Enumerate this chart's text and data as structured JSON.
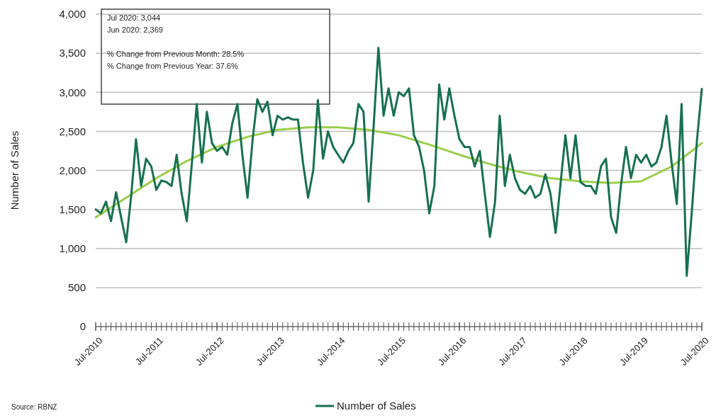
{
  "chart_data": {
    "type": "line",
    "ylabel": "Number of Sales",
    "annotations": [
      "Jul 2020:  3,044",
      "Jun 2020:  2,369",
      "% Change from Previous Month: 28.5%",
      "% Change from Previous Year: 37.6%",
      "Source: RBNZ"
    ],
    "x": [
      "2010-07",
      "2010-08",
      "2010-09",
      "2010-10",
      "2010-11",
      "2010-12",
      "2011-01",
      "2011-02",
      "2011-03",
      "2011-04",
      "2011-05",
      "2011-06",
      "2011-07",
      "2011-08",
      "2011-09",
      "2011-10",
      "2011-11",
      "2011-12",
      "2012-01",
      "2012-02",
      "2012-03",
      "2012-04",
      "2012-05",
      "2012-06",
      "2012-07",
      "2012-08",
      "2012-09",
      "2012-10",
      "2012-11",
      "2012-12",
      "2013-01",
      "2013-02",
      "2013-03",
      "2013-04",
      "2013-05",
      "2013-06",
      "2013-07",
      "2013-08",
      "2013-09",
      "2013-10",
      "2013-11",
      "2013-12",
      "2014-01",
      "2014-02",
      "2014-03",
      "2014-04",
      "2014-05",
      "2014-06",
      "2014-07",
      "2014-08",
      "2014-09",
      "2014-10",
      "2014-11",
      "2014-12",
      "2015-01",
      "2015-02",
      "2015-03",
      "2015-04",
      "2015-05",
      "2015-06",
      "2015-07",
      "2015-08",
      "2015-09",
      "2015-10",
      "2015-11",
      "2015-12",
      "2016-01",
      "2016-02",
      "2016-03",
      "2016-04",
      "2016-05",
      "2016-06",
      "2016-07",
      "2016-08",
      "2016-09",
      "2016-10",
      "2016-11",
      "2016-12",
      "2017-01",
      "2017-02",
      "2017-03",
      "2017-04",
      "2017-05",
      "2017-06",
      "2017-07",
      "2017-08",
      "2017-09",
      "2017-10",
      "2017-11",
      "2017-12",
      "2018-01",
      "2018-02",
      "2018-03",
      "2018-04",
      "2018-05",
      "2018-06",
      "2018-07",
      "2018-08",
      "2018-09",
      "2018-10",
      "2018-11",
      "2018-12",
      "2019-01",
      "2019-02",
      "2019-03",
      "2019-04",
      "2019-05",
      "2019-06",
      "2019-07",
      "2019-08",
      "2019-09",
      "2019-10",
      "2019-11",
      "2019-12",
      "2020-01",
      "2020-02",
      "2020-03",
      "2020-04",
      "2020-05",
      "2020-06",
      "2020-07"
    ],
    "series": [
      {
        "name": "Number of Sales",
        "color": "#17704f",
        "values": [
          1500,
          1450,
          1600,
          1350,
          1720,
          1400,
          1080,
          1700,
          2400,
          1800,
          2150,
          2050,
          1750,
          1870,
          1850,
          1800,
          2200,
          1700,
          1350,
          2100,
          2850,
          2100,
          2750,
          2350,
          2250,
          2300,
          2200,
          2600,
          2850,
          2200,
          1650,
          2400,
          2910,
          2750,
          2880,
          2450,
          2700,
          2650,
          2680,
          2650,
          2650,
          2100,
          1650,
          2000,
          2900,
          2150,
          2500,
          2300,
          2200,
          2100,
          2250,
          2350,
          2850,
          2750,
          1600,
          2600,
          3570,
          2700,
          3050,
          2700,
          3000,
          2950,
          3050,
          2450,
          2300,
          2000,
          1450,
          1800,
          3100,
          2650,
          3050,
          2700,
          2400,
          2300,
          2300,
          2050,
          2250,
          1700,
          1150,
          1600,
          2700,
          1800,
          2200,
          1900,
          1750,
          1700,
          1800,
          1650,
          1700,
          1950,
          1700,
          1200,
          1800,
          2450,
          1900,
          2450,
          1850,
          1800,
          1800,
          1700,
          2050,
          2150,
          1400,
          1200,
          1800,
          2300,
          1900,
          2200,
          2100,
          2200,
          2050,
          2100,
          2300,
          2700,
          2100,
          1570,
          2850,
          650,
          1450,
          2369,
          3044
        ]
      },
      {
        "type": "line",
        "color": "#9acd4a",
        "x": [
          "2010-07",
          "2011-01",
          "2011-07",
          "2012-01",
          "2012-07",
          "2013-01",
          "2013-07",
          "2014-01",
          "2014-07",
          "2015-01",
          "2015-07",
          "2016-01",
          "2016-07",
          "2017-01",
          "2017-07",
          "2018-01",
          "2018-07",
          "2019-01",
          "2019-07",
          "2020-01",
          "2020-07"
        ],
        "values": [
          1400,
          1650,
          1900,
          2120,
          2300,
          2430,
          2520,
          2550,
          2550,
          2520,
          2450,
          2330,
          2200,
          2080,
          1980,
          1900,
          1860,
          1840,
          1860,
          2050,
          2350
        ]
      }
    ],
    "xlim": [
      "2010-07",
      "2020-07"
    ],
    "xticks": [
      {
        "value": "2010-07",
        "label": "Jul-2010"
      },
      {
        "value": "2011-07",
        "label": "Jul-2011"
      },
      {
        "value": "2012-07",
        "label": "Jul-2012"
      },
      {
        "value": "2013-07",
        "label": "Jul-2013"
      },
      {
        "value": "2014-07",
        "label": "Jul-2014"
      },
      {
        "value": "2015-07",
        "label": "Jul-2015"
      },
      {
        "value": "2016-07",
        "label": "Jul-2016"
      },
      {
        "value": "2017-07",
        "label": "Jul-2017"
      },
      {
        "value": "2018-07",
        "label": "Jul-2018"
      },
      {
        "value": "2019-07",
        "label": "Jul-2019"
      },
      {
        "value": "2020-07",
        "label": "Jul-2020"
      }
    ],
    "ylim": [
      0,
      4000
    ],
    "yticks": [
      0,
      500,
      {
        "value": 1000,
        "label": "1,000"
      },
      {
        "value": 1500,
        "label": "1,500"
      },
      {
        "value": 2000,
        "label": "2,000"
      },
      {
        "value": 2500,
        "label": "2,500"
      },
      {
        "value": 3000,
        "label": "3,000"
      },
      {
        "value": 3500,
        "label": "3,500"
      },
      {
        "value": 4000,
        "label": "4,000"
      }
    ],
    "grid": "y",
    "legend": "bottom",
    "marker": "none",
    "line_style": "solid"
  }
}
